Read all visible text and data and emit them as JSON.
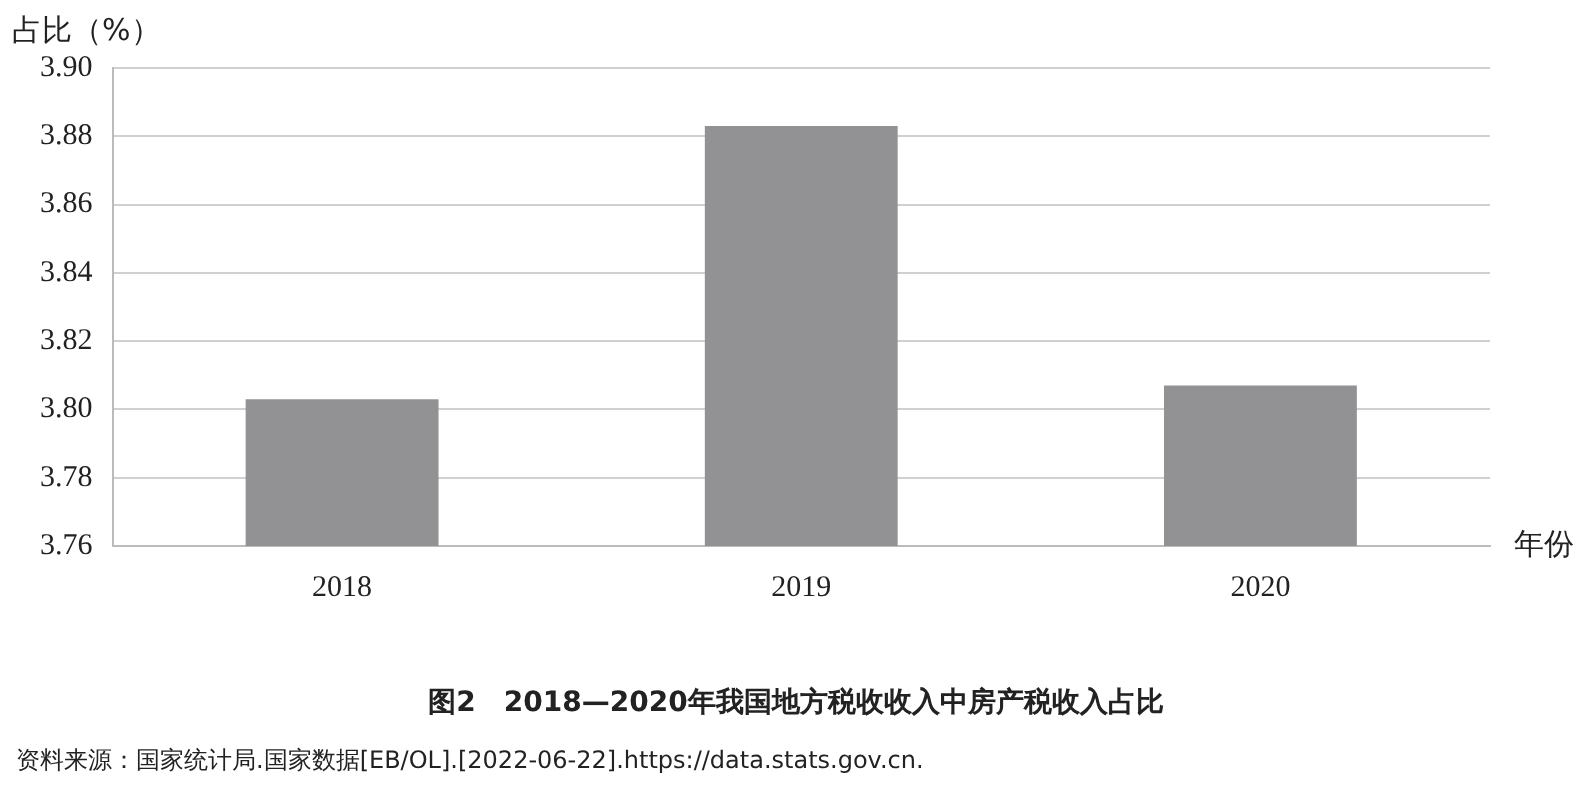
{
  "chart_data": {
    "type": "bar",
    "title": "图2　2018—2020年我国地方税收收入中房产税收入占比",
    "ylabel": "占比（%）",
    "xlabel": "年份",
    "categories": [
      "2018",
      "2019",
      "2020"
    ],
    "values": [
      3.803,
      3.883,
      3.807
    ],
    "color": "#929295",
    "ylim": [
      3.76,
      3.9
    ],
    "yticks": [
      {
        "value": 3.76,
        "label": "3.76"
      },
      {
        "value": 3.78,
        "label": "3.78"
      },
      {
        "value": 3.8,
        "label": "3.80"
      },
      {
        "value": 3.82,
        "label": "3.82"
      },
      {
        "value": 3.84,
        "label": "3.84"
      },
      {
        "value": 3.86,
        "label": "3.86"
      },
      {
        "value": 3.88,
        "label": "3.88"
      },
      {
        "value": 3.9,
        "label": "3.90"
      }
    ],
    "grid": "y",
    "legend": false,
    "annotations": [
      "资料来源：国家统计局.国家数据[EB/OL].[2022-06-22].https://data.stats.gov.cn."
    ]
  }
}
